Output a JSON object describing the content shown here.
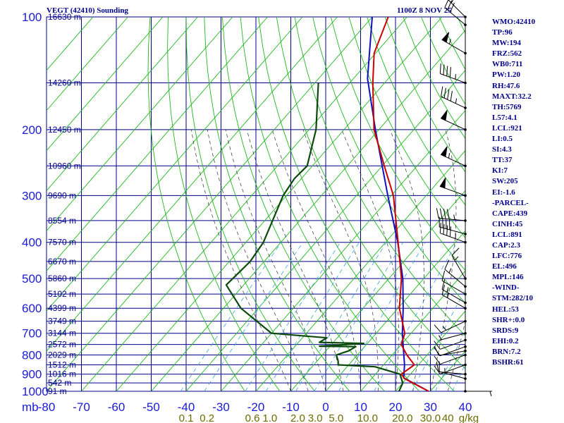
{
  "header": {
    "title_left": "VEGT (42410) Sounding",
    "title_right": "1100Z  8 NOV 25"
  },
  "params": [
    "WMO:42410",
    "TP:96",
    "MW:194",
    "FRZ:562",
    "WB0:711",
    "PW:1.20",
    "RH:47.6",
    "MAXT:32.2",
    "TH:5769",
    "L57:4.1",
    "LCL:921",
    "LI:0.5",
    "SI:4.3",
    "TT:37",
    "KI:7",
    "SW:205",
    "EI:-1.6",
    "-PARCEL-",
    "CAPE:439",
    "CINH:45",
    "LCL:891",
    "CAP:2.3",
    "LFC:776",
    "EL:496",
    "MPL:146",
    "-WIND-",
    "STM:282/10",
    "HEL:53",
    "SHR+:0.0",
    "SRDS:9",
    "EHI:0.2",
    "BRN:7.2",
    "BSHR:61"
  ],
  "colors": {
    "grid": "#00008b",
    "isotherm": "#1fb81f",
    "dry_adiabat": "#1fb81f",
    "moist_adiabat": "#333333",
    "mixing_ratio": "#3aa0e0",
    "temperature": "#cc0000",
    "dewpoint": "#0b4a0b",
    "parcel": "#1010c0"
  },
  "chart_data": {
    "type": "skew-t",
    "title": "VEGT (42410) Sounding",
    "pressure_unit": "mb",
    "temperature_unit": "°C",
    "mixing_ratio_unit": "g/kg",
    "grid": true,
    "x_range": [
      -80,
      40
    ],
    "pressure_range": [
      100,
      1000
    ],
    "pressure_ticks": [
      {
        "p": 100,
        "label": "100"
      },
      {
        "p": 200,
        "label": "200"
      },
      {
        "p": 300,
        "label": "300"
      },
      {
        "p": 400,
        "label": "400"
      },
      {
        "p": 500,
        "label": "500"
      },
      {
        "p": 600,
        "label": "600"
      },
      {
        "p": 700,
        "label": "700"
      },
      {
        "p": 800,
        "label": "800"
      },
      {
        "p": 900,
        "label": "900"
      },
      {
        "p": 1000,
        "label": "1000"
      }
    ],
    "temperature_ticks": [
      {
        "t": -80,
        "label": "-80"
      },
      {
        "t": -70,
        "label": "-70"
      },
      {
        "t": -60,
        "label": "-60"
      },
      {
        "t": -50,
        "label": "-50"
      },
      {
        "t": -40,
        "label": "-40"
      },
      {
        "t": -30,
        "label": "-30"
      },
      {
        "t": -20,
        "label": "-20"
      },
      {
        "t": -10,
        "label": "-10"
      },
      {
        "t": 0,
        "label": "0"
      },
      {
        "t": 10,
        "label": "10"
      },
      {
        "t": 20,
        "label": "20"
      },
      {
        "t": 30,
        "label": "30"
      },
      {
        "t": 40,
        "label": "40"
      }
    ],
    "pressure_axis_unit_label": "mb",
    "mixing_ratio_labels": [
      {
        "t": -40,
        "label": "0.1"
      },
      {
        "t": -34,
        "label": "0.2"
      },
      {
        "t": -21,
        "label": "0.6"
      },
      {
        "t": -16,
        "label": "1.0"
      },
      {
        "t": -8,
        "label": "2.0"
      },
      {
        "t": -3,
        "label": "3.0"
      },
      {
        "t": 3,
        "label": "5.0"
      },
      {
        "t": 12,
        "label": "10.0"
      },
      {
        "t": 22,
        "label": "20.0"
      },
      {
        "t": 30,
        "label": "30.0"
      },
      {
        "t": 35,
        "label": "40"
      },
      {
        "t": 41,
        "label": "g/kg"
      }
    ],
    "height_labels": [
      {
        "p": 100,
        "label": "16630 m"
      },
      {
        "p": 150,
        "label": "14260 m"
      },
      {
        "p": 200,
        "label": "12450 m"
      },
      {
        "p": 250,
        "label": "10960 m"
      },
      {
        "p": 300,
        "label": "9690 m"
      },
      {
        "p": 350,
        "label": "8554 m"
      },
      {
        "p": 400,
        "label": "7570 m"
      },
      {
        "p": 450,
        "label": "6670 m"
      },
      {
        "p": 500,
        "label": "5860 m"
      },
      {
        "p": 550,
        "label": "5102 m"
      },
      {
        "p": 600,
        "label": "4399 m"
      },
      {
        "p": 650,
        "label": "3749 m"
      },
      {
        "p": 700,
        "label": "3144 m"
      },
      {
        "p": 750,
        "label": "2572 m"
      },
      {
        "p": 800,
        "label": "2029 m"
      },
      {
        "p": 850,
        "label": "1512 m"
      },
      {
        "p": 900,
        "label": "1016 m"
      },
      {
        "p": 950,
        "label": "542 m"
      },
      {
        "p": 1000,
        "label": "91 m"
      }
    ],
    "temperature": [
      [
        1000,
        29.5
      ],
      [
        925,
        19.4
      ],
      [
        900,
        17.4
      ],
      [
        850,
        18.8
      ],
      [
        800,
        14.2
      ],
      [
        750,
        10.0
      ],
      [
        700,
        8.2
      ],
      [
        600,
        0.4
      ],
      [
        500,
        -6.4
      ],
      [
        400,
        -16.4
      ],
      [
        300,
        -29.4
      ],
      [
        250,
        -39.4
      ],
      [
        200,
        -51.4
      ],
      [
        150,
        -63.4
      ],
      [
        125,
        -70.4
      ],
      [
        100,
        -75.4
      ]
    ],
    "dewpoint": [
      [
        1000,
        21.0
      ],
      [
        950,
        20.0
      ],
      [
        900,
        17.0
      ],
      [
        860,
        8.0
      ],
      [
        850,
        -3.0
      ],
      [
        830,
        -4.0
      ],
      [
        800,
        -6.0
      ],
      [
        780,
        -3.5
      ],
      [
        760,
        -2.5
      ],
      [
        758,
        -13.0
      ],
      [
        745,
        -1.0
      ],
      [
        740,
        -14.0
      ],
      [
        720,
        -13.0
      ],
      [
        700,
        -30.0
      ],
      [
        600,
        -45.0
      ],
      [
        520,
        -55.0
      ],
      [
        450,
        -54.0
      ],
      [
        400,
        -55.0
      ],
      [
        300,
        -61.0
      ],
      [
        270,
        -62.0
      ],
      [
        250,
        -61.5
      ],
      [
        200,
        -68.0
      ],
      [
        150,
        -79.0
      ]
    ],
    "parcel": [
      [
        1000,
        29.5
      ],
      [
        921,
        19.0
      ],
      [
        850,
        16.0
      ],
      [
        776,
        12.0
      ],
      [
        700,
        7.5
      ],
      [
        600,
        1.5
      ],
      [
        500,
        -6.0
      ],
      [
        400,
        -16.5
      ],
      [
        300,
        -31.0
      ],
      [
        250,
        -40.0
      ],
      [
        200,
        -51.0
      ],
      [
        146,
        -66.0
      ],
      [
        100,
        -80.0
      ]
    ],
    "wind_barbs": [
      {
        "p": 1000,
        "dir": 90,
        "spd": 5
      },
      {
        "p": 925,
        "dir": 285,
        "spd": 15
      },
      {
        "p": 900,
        "dir": 275,
        "spd": 10
      },
      {
        "p": 850,
        "dir": 250,
        "spd": 10
      },
      {
        "p": 800,
        "dir": 250,
        "spd": 10
      },
      {
        "p": 780,
        "dir": 260,
        "spd": 10
      },
      {
        "p": 760,
        "dir": 250,
        "spd": 10
      },
      {
        "p": 730,
        "dir": 250,
        "spd": 10
      },
      {
        "p": 700,
        "dir": 255,
        "spd": 5
      },
      {
        "p": 650,
        "dir": 245,
        "spd": 15
      },
      {
        "p": 600,
        "dir": 300,
        "spd": 15
      },
      {
        "p": 580,
        "dir": 300,
        "spd": 15
      },
      {
        "p": 550,
        "dir": 300,
        "spd": 10
      },
      {
        "p": 525,
        "dir": 310,
        "spd": 15
      },
      {
        "p": 500,
        "dir": 330,
        "spd": 15
      },
      {
        "p": 400,
        "dir": 290,
        "spd": 45
      },
      {
        "p": 380,
        "dir": 285,
        "spd": 40
      },
      {
        "p": 350,
        "dir": 275,
        "spd": 45
      },
      {
        "p": 300,
        "dir": 290,
        "spd": 50
      },
      {
        "p": 250,
        "dir": 295,
        "spd": 55
      },
      {
        "p": 200,
        "dir": 295,
        "spd": 50
      },
      {
        "p": 175,
        "dir": 295,
        "spd": 45
      },
      {
        "p": 150,
        "dir": 290,
        "spd": 45
      },
      {
        "p": 125,
        "dir": 300,
        "spd": 55
      },
      {
        "p": 105,
        "dir": 310,
        "spd": 30
      },
      {
        "p": 100,
        "dir": 315,
        "spd": 30
      }
    ]
  }
}
